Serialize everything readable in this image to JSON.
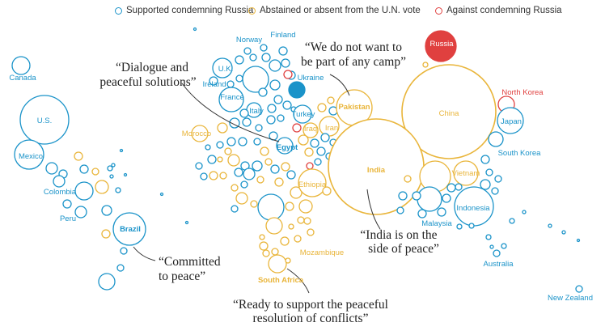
{
  "legend": [
    {
      "label": "Supported condemning Russia",
      "color": "#1a93c9"
    },
    {
      "label": "Abstained or absent from the U.N. vote",
      "color": "#e9b53a"
    },
    {
      "label": "Against condemning Russia",
      "color": "#e0403f"
    }
  ],
  "colors": {
    "supported": "#1a93c9",
    "abstained": "#e9b53a",
    "against": "#e0403f",
    "russia_fill": "#e0403f",
    "ukraine_fill": "#1a93c9"
  },
  "countries": {
    "canada": "Canada",
    "us": "U.S.",
    "mexico": "Mexico",
    "colombia": "Colombia",
    "peru": "Peru",
    "brazil": "Brazil",
    "norway": "Norway",
    "finland": "Finland",
    "uk": "U.K.",
    "ireland": "Ireland",
    "france": "France",
    "italy": "Italy",
    "ukraine": "Ukraine",
    "turkey": "Turkey",
    "iraq": "Iraq",
    "iran": "Iran",
    "egypt": "Egypt",
    "morocco": "Morocco",
    "ethiopia": "Ethiopia",
    "pakistan": "Pakistan",
    "russia": "Russia",
    "china": "China",
    "north_korea": "North Korea",
    "japan": "Japan",
    "south_korea": "South Korea",
    "india": "India",
    "vietnam": "Vietnam",
    "indonesia": "Indonesia",
    "malaysia": "Malaysia",
    "australia": "Australia",
    "new_zealand": "New Zealand",
    "mozambique": "Mozambique",
    "south_africa": "South Africa"
  },
  "quotes": {
    "china_1": "“Dialogue and",
    "china_2": "peaceful solutions”",
    "pakistan_1": "“We do not want to",
    "pakistan_2": "be part of any camp”",
    "india_1": "“India is on the",
    "india_2": "side of peace”",
    "brazil_1": "“Committed",
    "brazil_2": "to peace”",
    "sa_1": "“Ready to support the peaceful",
    "sa_2": "resolution of conflicts”"
  }
}
